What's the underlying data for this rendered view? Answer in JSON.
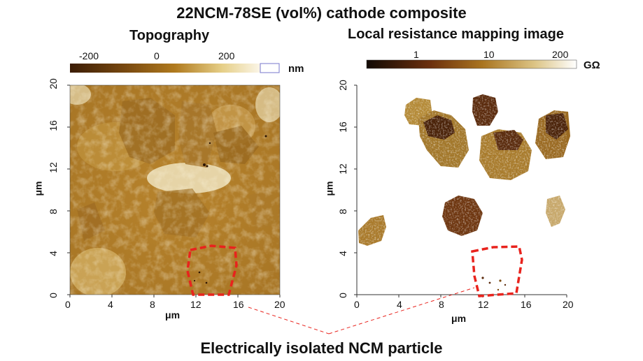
{
  "figure": {
    "title": "22NCM-78SE (vol%) cathode composite",
    "caption": "Electrically isolated NCM particle"
  },
  "left_panel": {
    "title": "Topography",
    "colorbar": {
      "ticks": [
        "-200",
        "0",
        "200"
      ],
      "unit": "nm"
    },
    "x_ticks": [
      "0",
      "4",
      "8",
      "12",
      "16",
      "20"
    ],
    "y_ticks": [
      "0",
      "4",
      "8",
      "12",
      "16",
      "20"
    ],
    "x_label": "μm",
    "y_label": "μm",
    "colors": {
      "dark": "#3b1c05",
      "mid": "#b07a1e",
      "light": "#fbf6e8"
    }
  },
  "right_panel": {
    "title": "Local resistance mapping image",
    "colorbar": {
      "ticks": [
        "1",
        "10",
        "200"
      ],
      "unit": "GΩ"
    },
    "x_ticks": [
      "0",
      "4",
      "8",
      "12",
      "16",
      "20"
    ],
    "y_ticks": [
      "0",
      "4",
      "8",
      "12",
      "16",
      "20"
    ],
    "x_label": "μm",
    "y_label": "μm"
  },
  "highlight": {
    "color": "#e8231d"
  }
}
